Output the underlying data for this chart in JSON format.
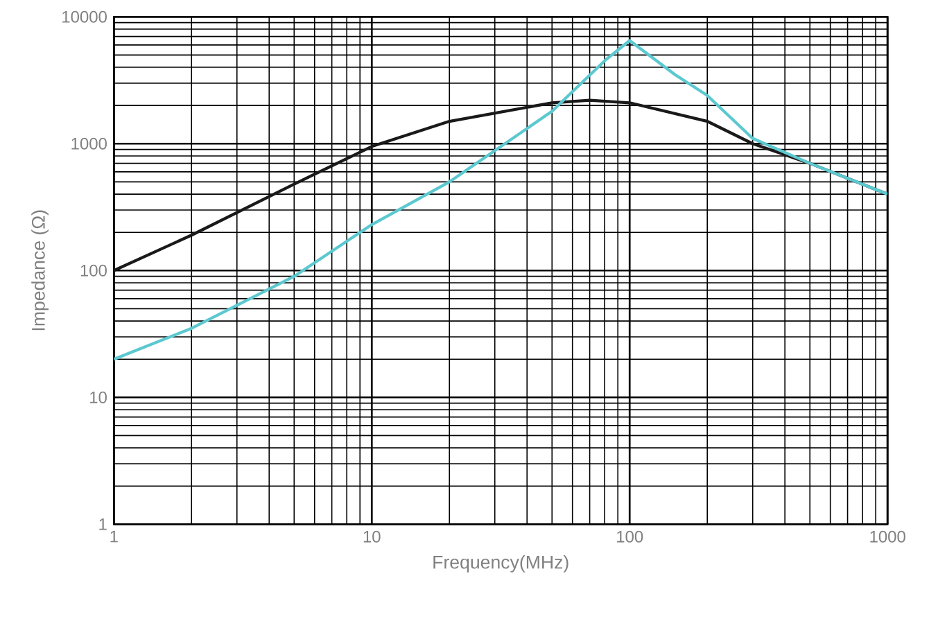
{
  "chart_data": {
    "type": "line",
    "xlabel": "Frequency(MHz)",
    "ylabel": "Impedance (Ω)",
    "log": "xy",
    "grid": true,
    "xlim": [
      1,
      1000
    ],
    "ylim": [
      1,
      10000
    ],
    "xticks": [
      1,
      10,
      100,
      1000
    ],
    "yticks": [
      1,
      10,
      100,
      1000,
      10000
    ],
    "series": [
      {
        "color": "#1a1a1a",
        "x": [
          1,
          2,
          5,
          10,
          20,
          50,
          70,
          100,
          200,
          300,
          500,
          1000
        ],
        "values": [
          100,
          190,
          480,
          950,
          1500,
          2100,
          2200,
          2100,
          1500,
          1000,
          700,
          400
        ]
      },
      {
        "color": "#5cc8d0",
        "x": [
          1,
          2,
          5,
          10,
          20,
          50,
          80,
          100,
          150,
          200,
          300,
          500,
          1000
        ],
        "values": [
          20,
          35,
          90,
          230,
          500,
          1800,
          4500,
          6500,
          3500,
          2400,
          1100,
          700,
          400
        ]
      }
    ]
  }
}
